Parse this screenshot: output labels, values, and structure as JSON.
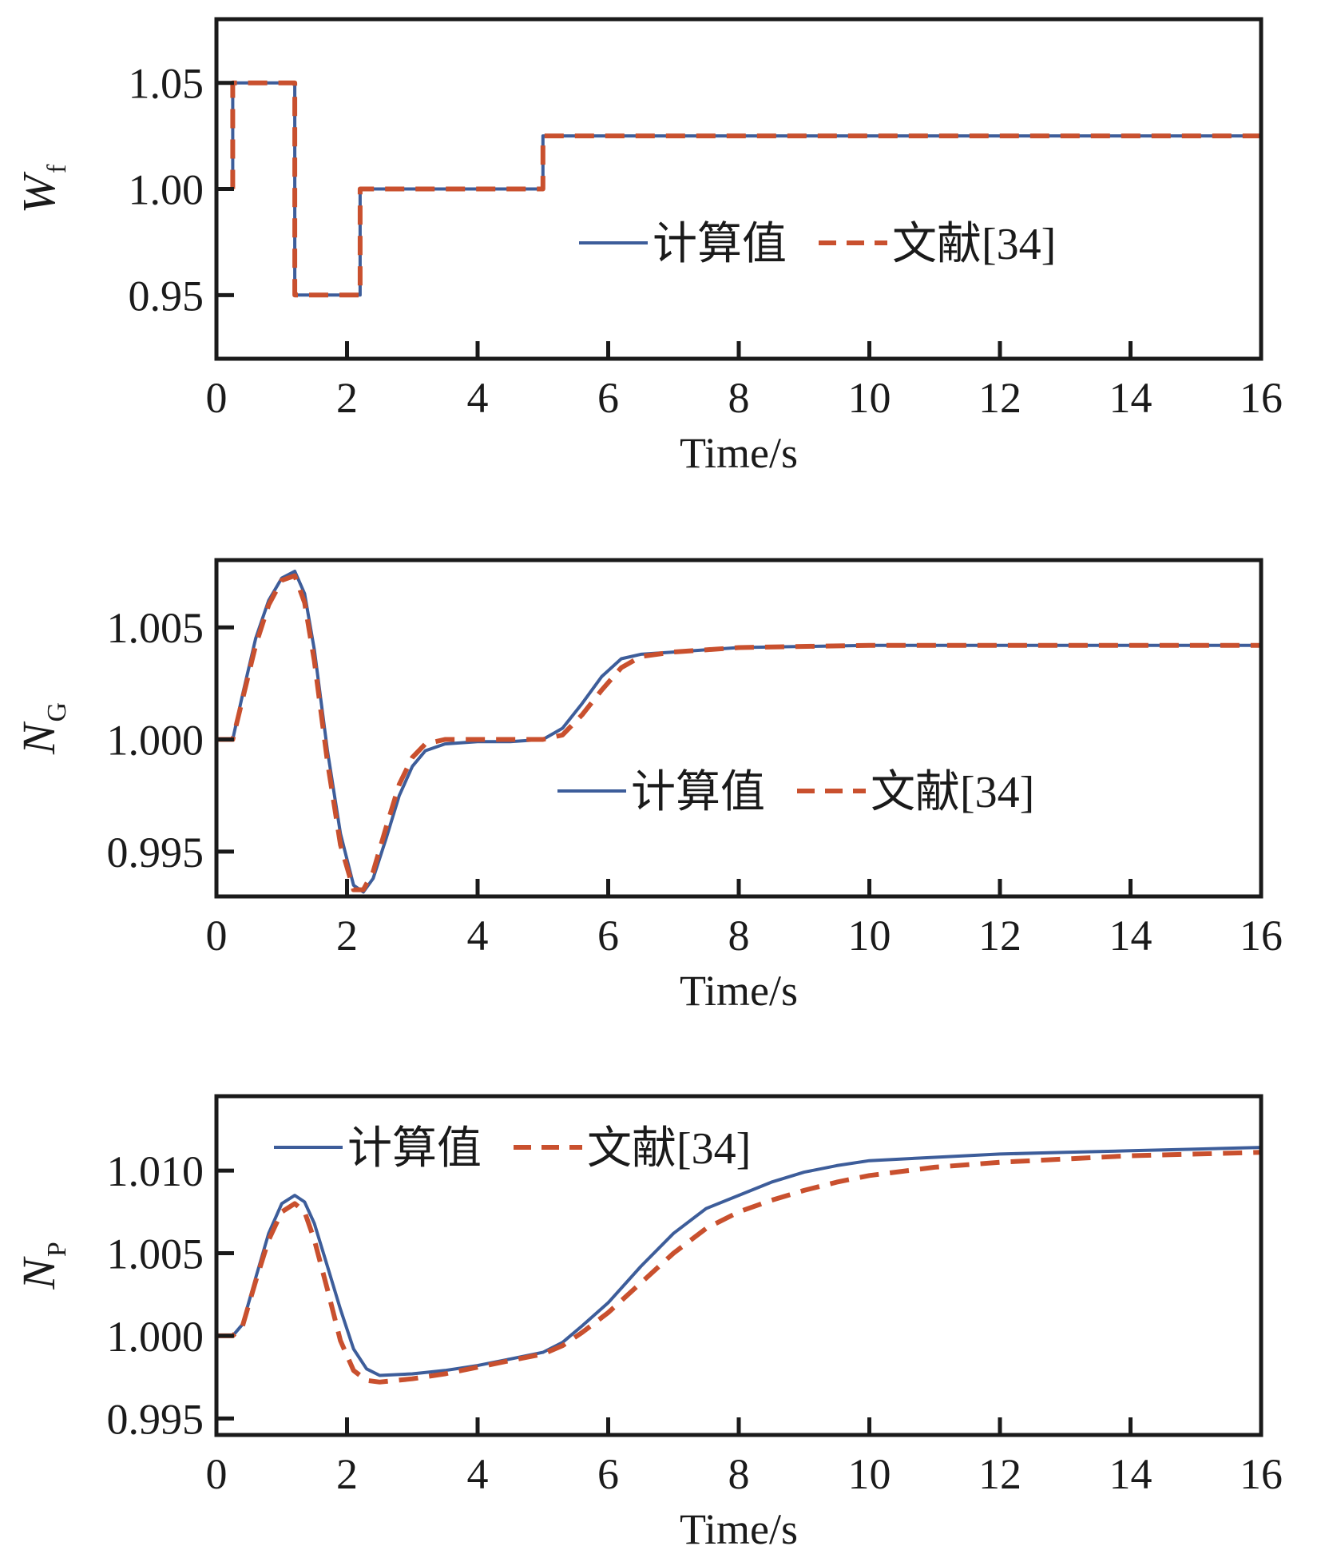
{
  "colors": {
    "computed": "#3d5d9a",
    "reference": "#c9502e",
    "axis": "#1a1a1a"
  },
  "chart_data": [
    {
      "type": "line",
      "xlabel": "Time/s",
      "ylabel": "W",
      "ylabel_sub": "f",
      "xlim": [
        0,
        16
      ],
      "ylim": [
        0.92,
        1.08
      ],
      "xticks": [
        0,
        2,
        4,
        6,
        8,
        10,
        12,
        14,
        16
      ],
      "yticks": [
        0.95,
        1.0,
        1.05
      ],
      "ytick_labels": [
        "0.95",
        "1.00",
        "1.05"
      ],
      "legend_position": "center-right",
      "series": [
        {
          "name": "计算值",
          "style": "solid",
          "x": [
            0.25,
            0.25,
            1.2,
            1.2,
            2.2,
            2.2,
            5.0,
            5.0,
            16
          ],
          "y": [
            1.0,
            1.05,
            1.05,
            0.95,
            0.95,
            1.0,
            1.0,
            1.025,
            1.025
          ]
        },
        {
          "name": "文献[34]",
          "style": "dashed",
          "x": [
            0.25,
            0.25,
            1.2,
            1.2,
            2.2,
            2.2,
            5.0,
            5.0,
            16
          ],
          "y": [
            1.0,
            1.05,
            1.05,
            0.95,
            0.95,
            1.0,
            1.0,
            1.025,
            1.025
          ]
        }
      ]
    },
    {
      "type": "line",
      "xlabel": "Time/s",
      "ylabel": "N",
      "ylabel_sub": "G",
      "xlim": [
        0,
        16
      ],
      "ylim": [
        0.993,
        1.008
      ],
      "xticks": [
        0,
        2,
        4,
        6,
        8,
        10,
        12,
        14,
        16
      ],
      "yticks": [
        0.995,
        1.0,
        1.005
      ],
      "ytick_labels": [
        "0.995",
        "1.000",
        "1.005"
      ],
      "legend_position": "center-right",
      "series": [
        {
          "name": "计算值",
          "style": "solid",
          "x": [
            0.0,
            0.25,
            0.4,
            0.6,
            0.8,
            1.0,
            1.2,
            1.35,
            1.5,
            1.7,
            1.9,
            2.1,
            2.25,
            2.4,
            2.6,
            2.8,
            3.0,
            3.2,
            3.5,
            4.0,
            4.5,
            5.0,
            5.3,
            5.6,
            5.9,
            6.2,
            6.5,
            7.0,
            8.0,
            10.0,
            12.0,
            16.0
          ],
          "y": [
            1.0,
            1.0,
            1.002,
            1.0045,
            1.0062,
            1.0072,
            1.0075,
            1.0065,
            1.004,
            0.9995,
            0.9958,
            0.9935,
            0.9932,
            0.9938,
            0.9956,
            0.9975,
            0.9988,
            0.9995,
            0.9998,
            0.9999,
            0.9999,
            1.0,
            1.0005,
            1.0016,
            1.0028,
            1.0036,
            1.0038,
            1.0039,
            1.0041,
            1.0042,
            1.0042,
            1.0042
          ]
        },
        {
          "name": "文献[34]",
          "style": "dashed",
          "x": [
            0.0,
            0.25,
            0.4,
            0.6,
            0.8,
            1.0,
            1.2,
            1.35,
            1.5,
            1.7,
            1.9,
            2.1,
            2.25,
            2.4,
            2.6,
            2.8,
            3.0,
            3.2,
            3.5,
            4.0,
            4.5,
            5.0,
            5.3,
            5.6,
            5.9,
            6.2,
            6.5,
            7.0,
            8.0,
            10.0,
            12.0,
            16.0
          ],
          "y": [
            1.0,
            1.0,
            1.0018,
            1.0042,
            1.006,
            1.0071,
            1.0073,
            1.0061,
            1.0035,
            0.999,
            0.9953,
            0.9933,
            0.9933,
            0.9941,
            0.9961,
            0.998,
            0.9992,
            0.9998,
            1.0,
            1.0,
            1.0,
            1.0,
            1.0002,
            1.0011,
            1.0022,
            1.0032,
            1.0037,
            1.0039,
            1.0041,
            1.0042,
            1.0042,
            1.0042
          ]
        }
      ]
    },
    {
      "type": "line",
      "xlabel": "Time/s",
      "ylabel": "N",
      "ylabel_sub": "P",
      "xlim": [
        0,
        16
      ],
      "ylim": [
        0.994,
        1.0145
      ],
      "xticks": [
        0,
        2,
        4,
        6,
        8,
        10,
        12,
        14,
        16
      ],
      "yticks": [
        0.995,
        1.0,
        1.005,
        1.01
      ],
      "ytick_labels": [
        "0.995",
        "1.000",
        "1.005",
        "1.010"
      ],
      "legend_position": "top-left",
      "series": [
        {
          "name": "计算值",
          "style": "solid",
          "x": [
            0.0,
            0.25,
            0.4,
            0.6,
            0.8,
            1.0,
            1.2,
            1.35,
            1.5,
            1.7,
            1.9,
            2.1,
            2.3,
            2.5,
            3.0,
            3.5,
            4.0,
            4.5,
            5.0,
            5.3,
            5.6,
            6.0,
            6.5,
            7.0,
            7.5,
            8.0,
            8.5,
            9.0,
            9.5,
            10.0,
            11.0,
            12.0,
            13.0,
            14.0,
            15.0,
            16.0
          ],
          "y": [
            1.0,
            1.0,
            1.0007,
            1.0035,
            1.0062,
            1.008,
            1.0085,
            1.0081,
            1.0068,
            1.0042,
            1.0016,
            0.9992,
            0.998,
            0.9976,
            0.9977,
            0.9979,
            0.9982,
            0.9986,
            0.999,
            0.9996,
            1.0006,
            1.002,
            1.0042,
            1.0062,
            1.0077,
            1.0085,
            1.0093,
            1.0099,
            1.0103,
            1.0106,
            1.0108,
            1.011,
            1.0111,
            1.0112,
            1.0113,
            1.0114
          ]
        },
        {
          "name": "文献[34]",
          "style": "dashed",
          "x": [
            0.0,
            0.25,
            0.4,
            0.6,
            0.8,
            1.0,
            1.2,
            1.35,
            1.5,
            1.7,
            1.9,
            2.1,
            2.3,
            2.5,
            3.0,
            3.5,
            4.0,
            4.5,
            5.0,
            5.3,
            5.6,
            6.0,
            6.5,
            7.0,
            7.5,
            8.0,
            8.5,
            9.0,
            9.5,
            10.0,
            11.0,
            12.0,
            13.0,
            14.0,
            15.0,
            16.0
          ],
          "y": [
            1.0,
            1.0,
            1.0006,
            1.0033,
            1.0058,
            1.0075,
            1.008,
            1.0075,
            1.0058,
            1.0028,
            0.9997,
            0.9979,
            0.9973,
            0.9972,
            0.9974,
            0.9977,
            0.9981,
            0.9985,
            0.9989,
            0.9994,
            1.0002,
            1.0014,
            1.0032,
            1.005,
            1.0065,
            1.0075,
            1.0082,
            1.0088,
            1.0093,
            1.0097,
            1.0102,
            1.0105,
            1.0107,
            1.0109,
            1.011,
            1.0111
          ]
        }
      ]
    }
  ]
}
